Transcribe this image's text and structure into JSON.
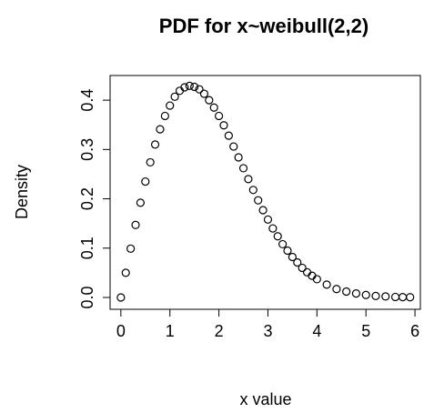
{
  "chart_data": {
    "type": "scatter",
    "title": "PDF for x~weibull(2,2)",
    "x_label": "x value",
    "y_label": "Density",
    "xlim": [
      -0.22,
      6.11
    ],
    "ylim": [
      -0.024,
      0.45
    ],
    "xticks": [
      0,
      1,
      2,
      3,
      4,
      5,
      6
    ],
    "yticks": [
      {
        "value": 0,
        "label": "0.0"
      },
      0.1,
      0.2,
      0.3,
      0.4
    ],
    "grid": false,
    "series": [
      {
        "color": "#000000",
        "x": [
          0,
          0.1,
          0.2,
          0.3,
          0.4,
          0.5,
          0.6,
          0.7,
          0.8,
          0.9,
          1.0,
          1.1,
          1.2,
          1.3,
          1.4,
          1.5,
          1.6,
          1.7,
          1.8,
          1.9,
          2.0,
          2.1,
          2.2,
          2.3,
          2.4,
          2.5,
          2.6,
          2.7,
          2.8,
          2.9,
          3.0,
          3.1,
          3.2,
          3.3,
          3.4,
          3.5,
          3.6,
          3.7,
          3.8,
          3.9,
          4.0,
          4.2,
          4.4,
          4.6,
          4.8,
          5.0,
          5.2,
          5.4,
          5.6,
          5.75,
          5.9
        ],
        "values": [
          0,
          0.05,
          0.099,
          0.147,
          0.192,
          0.235,
          0.274,
          0.31,
          0.341,
          0.368,
          0.389,
          0.407,
          0.419,
          0.426,
          0.429,
          0.427,
          0.422,
          0.413,
          0.4,
          0.385,
          0.368,
          0.349,
          0.328,
          0.306,
          0.284,
          0.262,
          0.24,
          0.218,
          0.197,
          0.177,
          0.158,
          0.14,
          0.124,
          0.108,
          0.095,
          0.082,
          0.071,
          0.06,
          0.051,
          0.044,
          0.037,
          0.026,
          0.017,
          0.012,
          0.008,
          0.005,
          0.003,
          0.002,
          0.001,
          0.0007,
          0.0005
        ]
      }
    ]
  }
}
